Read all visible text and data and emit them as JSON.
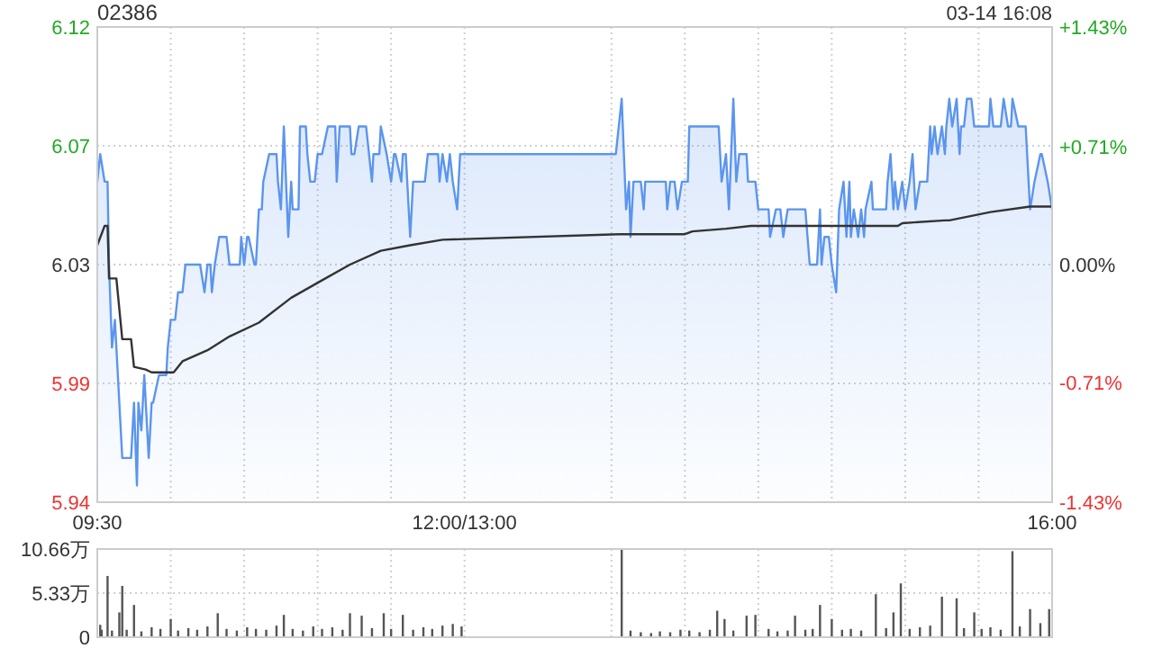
{
  "chart_data": [
    {
      "type": "area",
      "title": "02386",
      "annotations": [
        "03-14 16:08"
      ],
      "grid": true,
      "xlim": [
        9.5,
        16
      ],
      "xticks": [
        {
          "value": 9.5,
          "label": "09:30"
        },
        {
          "value": 10,
          "label": null
        },
        {
          "value": 10.5,
          "label": null
        },
        {
          "value": 11,
          "label": null
        },
        {
          "value": 11.5,
          "label": null
        },
        {
          "value": 12,
          "label": "12:00/13:00"
        },
        {
          "value": 13,
          "label": null
        },
        {
          "value": 13.5,
          "label": null
        },
        {
          "value": 14,
          "label": null
        },
        {
          "value": 14.5,
          "label": null
        },
        {
          "value": 15,
          "label": null
        },
        {
          "value": 15.5,
          "label": null
        },
        {
          "value": 16,
          "label": "16:00"
        }
      ],
      "ylim": [
        5.944,
        6.116
      ],
      "yticks": [
        {
          "value": 5.944,
          "label": "5.94"
        },
        {
          "value": 5.987,
          "label": "5.99"
        },
        {
          "value": 6.03,
          "label": "6.03"
        },
        {
          "value": 6.073,
          "label": "6.07"
        },
        {
          "value": 6.116,
          "label": "6.12"
        }
      ],
      "y2lim": [
        -1.43,
        1.43
      ],
      "y2ticks": [
        {
          "value": -1.43,
          "label": "-1.43%"
        },
        {
          "value": -0.71,
          "label": "-0.71%"
        },
        {
          "value": 0,
          "label": "0.00%"
        },
        {
          "value": 0.71,
          "label": "+0.71%"
        },
        {
          "value": 1.43,
          "label": "+1.43%"
        }
      ],
      "series": [
        {
          "color": "#5b95ee",
          "x": [
            9.5,
            9.52,
            9.55,
            9.57,
            9.58,
            9.6,
            9.62,
            9.67,
            9.73,
            9.75,
            9.77,
            9.78,
            9.8,
            9.82,
            9.85,
            9.87,
            9.88,
            9.92,
            9.97,
            9.98,
            10,
            10.03,
            10.05,
            10.08,
            10.1,
            10.2,
            10.23,
            10.25,
            10.27,
            10.28,
            10.3,
            10.33,
            10.38,
            10.4,
            10.47,
            10.48,
            10.5,
            10.52,
            10.53,
            10.57,
            10.58,
            10.6,
            10.62,
            10.63,
            10.67,
            10.72,
            10.73,
            10.75,
            10.77,
            10.8,
            10.82,
            10.83,
            10.87,
            10.88,
            10.92,
            10.93,
            10.95,
            10.98,
            11,
            11.03,
            11.07,
            11.12,
            11.13,
            11.15,
            11.22,
            11.23,
            11.25,
            11.28,
            11.33,
            11.37,
            11.38,
            11.42,
            11.43,
            11.47,
            11.5,
            11.52,
            11.53,
            11.57,
            11.58,
            11.6,
            11.63,
            11.65,
            11.73,
            11.75,
            11.82,
            11.83,
            11.85,
            11.88,
            11.9,
            11.92,
            11.95,
            11.97,
            13.03,
            13.07,
            13.1,
            13.12,
            13.13,
            13.15,
            13.2,
            13.22,
            13.23,
            13.37,
            13.38,
            13.4,
            13.43,
            13.45,
            13.48,
            13.52,
            13.53,
            13.73,
            13.75,
            13.78,
            13.8,
            13.83,
            13.85,
            13.87,
            13.92,
            13.93,
            13.98,
            14,
            14.07,
            14.08,
            14.12,
            14.15,
            14.17,
            14.2,
            14.32,
            14.35,
            14.4,
            14.42,
            14.43,
            14.45,
            14.48,
            14.5,
            14.53,
            14.55,
            14.58,
            14.6,
            14.62,
            14.63,
            14.65,
            14.68,
            14.7,
            14.72,
            14.73,
            14.77,
            14.78,
            14.87,
            14.88,
            14.9,
            14.92,
            14.93,
            14.95,
            14.98,
            15,
            15.03,
            15.05,
            15.07,
            15.1,
            15.15,
            15.17,
            15.18,
            15.2,
            15.22,
            15.25,
            15.27,
            15.28,
            15.3,
            15.32,
            15.35,
            15.37,
            15.38,
            15.4,
            15.42,
            15.45,
            15.47,
            15.57,
            15.58,
            15.6,
            15.65,
            15.67,
            15.7,
            15.72,
            15.73,
            15.77,
            15.82,
            15.85,
            15.88,
            15.92,
            15.93,
            15.97,
            16
          ],
          "values": [
            6.06,
            6.07,
            6.06,
            6.06,
            6.03,
            6.0,
            6.01,
            5.96,
            5.96,
            5.98,
            5.95,
            5.98,
            5.97,
            5.99,
            5.96,
            5.98,
            5.98,
            5.99,
            5.99,
            6.0,
            6.01,
            6.01,
            6.02,
            6.02,
            6.03,
            6.03,
            6.02,
            6.03,
            6.03,
            6.02,
            6.03,
            6.04,
            6.04,
            6.03,
            6.03,
            6.04,
            6.03,
            6.04,
            6.04,
            6.03,
            6.03,
            6.05,
            6.05,
            6.06,
            6.07,
            6.07,
            6.06,
            6.05,
            6.08,
            6.04,
            6.06,
            6.05,
            6.05,
            6.08,
            6.08,
            6.07,
            6.06,
            6.06,
            6.07,
            6.07,
            6.08,
            6.08,
            6.06,
            6.08,
            6.08,
            6.07,
            6.07,
            6.08,
            6.08,
            6.06,
            6.07,
            6.07,
            6.08,
            6.07,
            6.06,
            6.07,
            6.07,
            6.06,
            6.07,
            6.07,
            6.04,
            6.06,
            6.06,
            6.07,
            6.07,
            6.06,
            6.07,
            6.06,
            6.07,
            6.06,
            6.05,
            6.07,
            6.07,
            6.09,
            6.05,
            6.06,
            6.04,
            6.06,
            6.06,
            6.05,
            6.06,
            6.06,
            6.05,
            6.06,
            6.06,
            6.05,
            6.06,
            6.06,
            6.08,
            6.08,
            6.06,
            6.07,
            6.05,
            6.09,
            6.06,
            6.07,
            6.07,
            6.06,
            6.06,
            6.05,
            6.05,
            6.04,
            6.05,
            6.05,
            6.04,
            6.05,
            6.05,
            6.03,
            6.03,
            6.05,
            6.03,
            6.04,
            6.04,
            6.03,
            6.02,
            6.05,
            6.06,
            6.04,
            6.06,
            6.04,
            6.05,
            6.04,
            6.05,
            6.04,
            6.05,
            6.06,
            6.05,
            6.05,
            6.06,
            6.07,
            6.05,
            6.06,
            6.05,
            6.06,
            6.05,
            6.06,
            6.07,
            6.05,
            6.06,
            6.06,
            6.08,
            6.07,
            6.08,
            6.07,
            6.08,
            6.07,
            6.08,
            6.09,
            6.08,
            6.09,
            6.07,
            6.08,
            6.08,
            6.09,
            6.09,
            6.08,
            6.08,
            6.09,
            6.08,
            6.08,
            6.09,
            6.08,
            6.08,
            6.09,
            6.08,
            6.08,
            6.05,
            6.06,
            6.07,
            6.07,
            6.06,
            6.05
          ]
        },
        {
          "type": "line",
          "color": "#333333",
          "x": [
            9.5,
            9.55,
            9.57,
            9.58,
            9.63,
            9.67,
            9.73,
            9.75,
            9.83,
            9.87,
            10.02,
            10.08,
            10.25,
            10.4,
            10.6,
            10.82,
            11.02,
            11.22,
            11.43,
            11.63,
            11.85,
            13.05,
            13.37,
            13.5,
            13.55,
            13.78,
            13.95,
            14.95,
            14.98,
            15.27,
            15.3,
            15.58,
            15.85,
            16
          ],
          "values": [
            6.037,
            6.044,
            6.044,
            6.025,
            6.025,
            6.003,
            6.003,
            5.993,
            5.992,
            5.991,
            5.991,
            5.995,
            5.999,
            6.004,
            6.009,
            6.018,
            6.024,
            6.03,
            6.035,
            6.037,
            6.039,
            6.041,
            6.041,
            6.041,
            6.042,
            6.043,
            6.044,
            6.044,
            6.045,
            6.046,
            6.046,
            6.049,
            6.051,
            6.051
          ]
        }
      ]
    },
    {
      "type": "bar",
      "grid": true,
      "tick_labels": "y",
      "color": "#555555",
      "xlim": [
        9.5,
        16
      ],
      "xticks": [
        {
          "value": 9.5,
          "label": null
        },
        {
          "value": 10,
          "label": null
        },
        {
          "value": 10.5,
          "label": null
        },
        {
          "value": 11,
          "label": null
        },
        {
          "value": 11.5,
          "label": null
        },
        {
          "value": 12,
          "label": null
        },
        {
          "value": 13,
          "label": null
        },
        {
          "value": 13.5,
          "label": null
        },
        {
          "value": 14,
          "label": null
        },
        {
          "value": 14.5,
          "label": null
        },
        {
          "value": 15,
          "label": null
        },
        {
          "value": 15.5,
          "label": null
        },
        {
          "value": 16,
          "label": null
        }
      ],
      "ylim": [
        0,
        10.66
      ],
      "yticks": [
        0,
        {
          "value": 5.33,
          "label": "5.33万"
        },
        {
          "value": 10.66,
          "label": "10.66万"
        }
      ],
      "x": [
        9.52,
        9.53,
        9.57,
        9.6,
        9.65,
        9.67,
        9.7,
        9.75,
        9.8,
        9.87,
        9.93,
        10,
        10.05,
        10.12,
        10.18,
        10.25,
        10.32,
        10.38,
        10.45,
        10.52,
        10.58,
        10.65,
        10.72,
        10.77,
        10.83,
        10.9,
        10.97,
        11.03,
        11.1,
        11.17,
        11.22,
        11.3,
        11.37,
        11.45,
        11.5,
        11.58,
        11.65,
        11.72,
        11.78,
        11.85,
        11.92,
        11.98,
        13.07,
        13.13,
        13.2,
        13.27,
        13.33,
        13.4,
        13.47,
        13.53,
        13.6,
        13.67,
        13.72,
        13.77,
        13.83,
        13.92,
        13.98,
        14.07,
        14.13,
        14.2,
        14.25,
        14.32,
        14.37,
        14.42,
        14.5,
        14.57,
        14.63,
        14.7,
        14.8,
        14.87,
        14.92,
        14.97,
        15.03,
        15.1,
        15.17,
        15.25,
        15.35,
        15.4,
        15.47,
        15.52,
        15.58,
        15.65,
        15.73,
        15.78,
        15.85,
        15.92,
        15.98
      ],
      "values": [
        1.5,
        0.9,
        7.4,
        0.8,
        3.0,
        6.2,
        0.9,
        3.9,
        0.7,
        1.2,
        1.0,
        2.2,
        0.8,
        1.1,
        0.9,
        1.3,
        2.9,
        1.0,
        0.8,
        1.2,
        1.0,
        0.9,
        1.4,
        2.7,
        1.0,
        0.8,
        1.3,
        1.0,
        1.2,
        0.9,
        2.9,
        2.6,
        1.1,
        2.9,
        1.0,
        2.7,
        0.9,
        1.2,
        1.0,
        1.4,
        1.6,
        1.3,
        10.66,
        0.8,
        0.6,
        0.5,
        0.7,
        0.6,
        0.9,
        0.8,
        0.6,
        0.9,
        3.2,
        2.2,
        0.8,
        2.6,
        2.7,
        1.0,
        0.7,
        0.8,
        2.6,
        0.9,
        1.0,
        3.9,
        2.2,
        0.9,
        1.0,
        0.8,
        5.2,
        1.1,
        3.0,
        6.5,
        1.0,
        1.2,
        1.4,
        4.9,
        4.7,
        1.1,
        3.0,
        1.0,
        1.2,
        0.9,
        10.4,
        1.3,
        3.4,
        1.7,
        3.4
      ]
    }
  ]
}
